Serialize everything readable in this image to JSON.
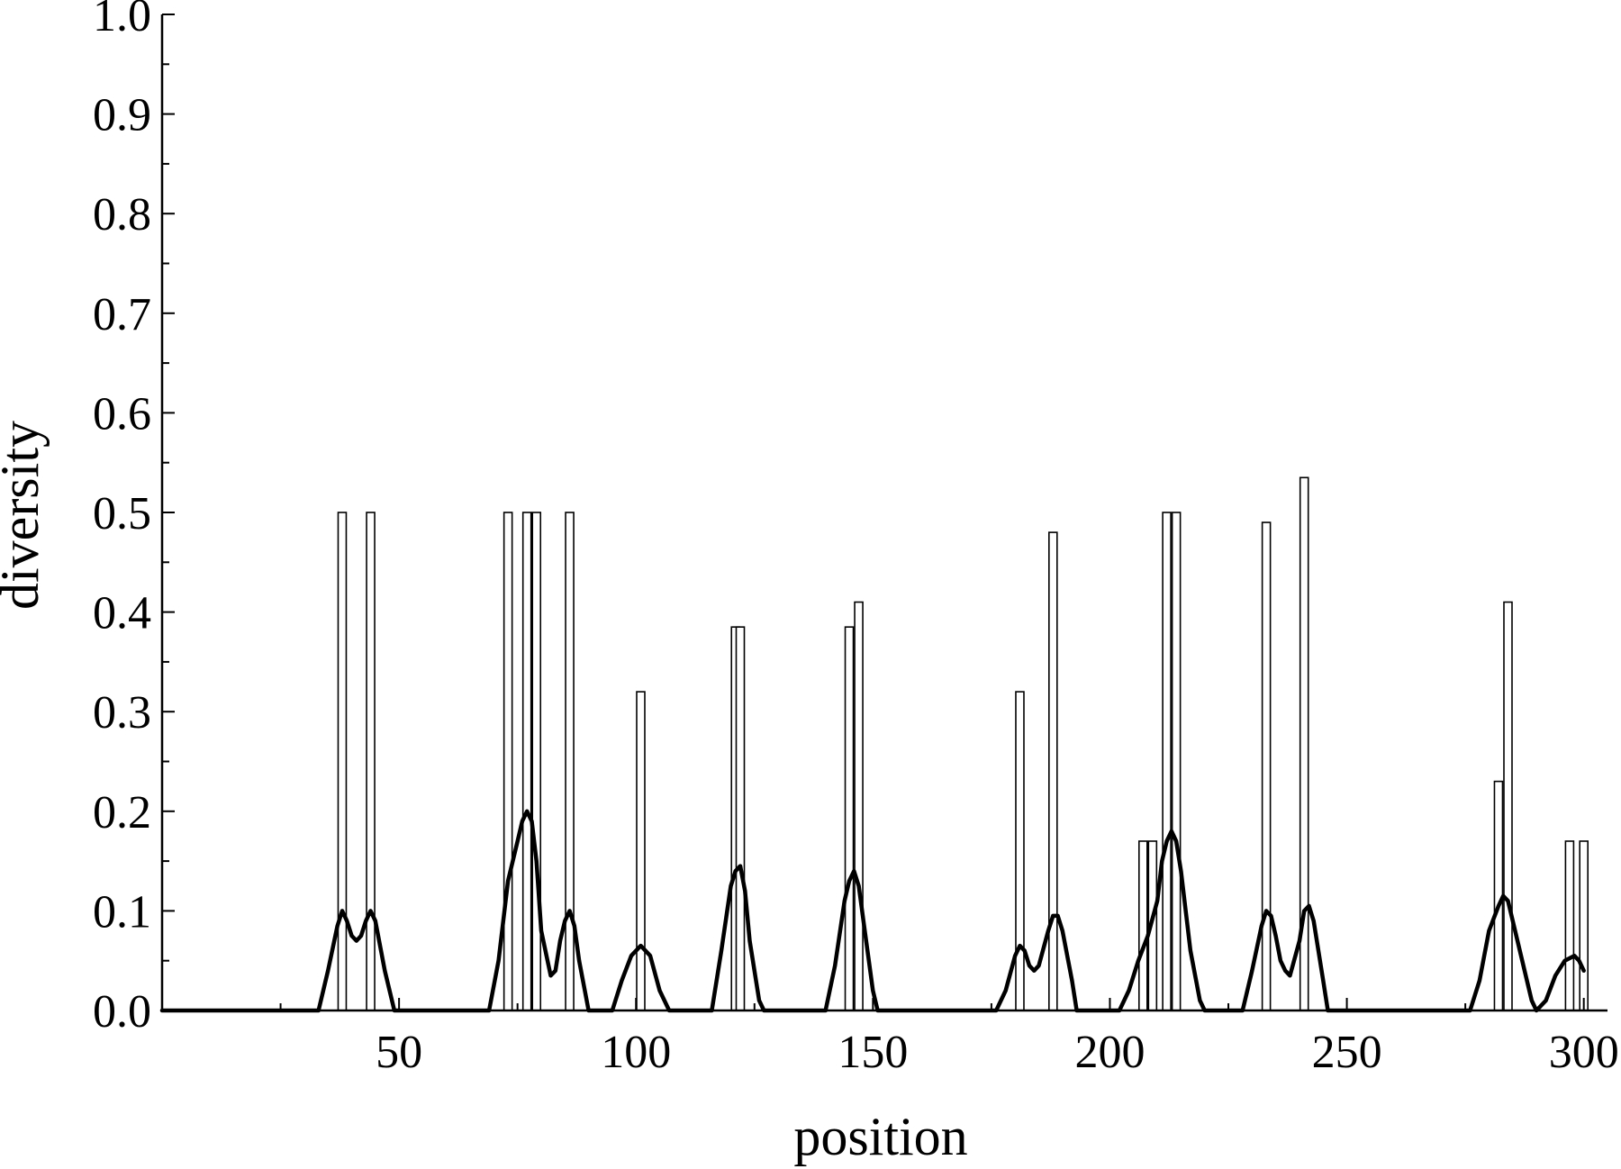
{
  "chart_data": {
    "type": "bar",
    "title": "",
    "xlabel": "position",
    "ylabel": "diversity",
    "xlim": [
      0,
      305
    ],
    "ylim": [
      0,
      1.0
    ],
    "x_ticks": [
      50,
      100,
      150,
      200,
      250,
      300
    ],
    "x_tick_labels": [
      "50",
      "100",
      "150",
      "200",
      "250",
      "300"
    ],
    "y_ticks": [
      0.0,
      0.1,
      0.2,
      0.3,
      0.4,
      0.5,
      0.6,
      0.7,
      0.8,
      0.9,
      1.0
    ],
    "y_tick_labels": [
      "0.0",
      "0.1",
      "0.2",
      "0.3",
      "0.4",
      "0.5",
      "0.6",
      "0.7",
      "0.8",
      "0.9",
      "1.0"
    ],
    "grid": false,
    "legend": "none",
    "series": [
      {
        "type": "bar",
        "x": [
          38,
          44,
          73,
          77,
          79,
          86,
          101,
          121,
          122,
          145,
          147,
          181,
          188,
          207,
          209,
          212,
          214,
          233,
          241,
          282,
          284,
          297,
          300
        ],
        "values": [
          0.5,
          0.5,
          0.5,
          0.5,
          0.5,
          0.5,
          0.32,
          0.385,
          0.385,
          0.385,
          0.41,
          0.32,
          0.48,
          0.17,
          0.17,
          0.5,
          0.5,
          0.49,
          0.535,
          0.23,
          0.41,
          0.17,
          0.17
        ]
      },
      {
        "type": "line",
        "x": [
          0,
          33,
          35,
          37,
          38,
          39,
          40,
          41,
          42,
          43,
          44,
          45,
          47,
          49,
          69,
          71,
          73,
          75,
          76,
          77,
          78,
          79,
          80,
          82,
          83,
          84,
          85,
          86,
          87,
          88,
          90,
          95,
          97,
          99,
          101,
          103,
          105,
          107,
          116,
          118,
          120,
          121,
          122,
          123,
          124,
          126,
          127,
          140,
          142,
          144,
          145,
          146,
          147,
          148,
          150,
          151,
          176,
          178,
          180,
          181,
          182,
          183,
          184,
          185,
          187,
          188,
          189,
          190,
          192,
          193,
          202,
          204,
          206,
          208,
          210,
          211,
          212,
          213,
          214,
          215,
          217,
          219,
          220,
          228,
          230,
          232,
          233,
          234,
          235,
          236,
          237,
          238,
          240,
          241,
          242,
          243,
          245,
          246,
          276,
          278,
          280,
          282,
          283,
          284,
          285,
          287,
          289,
          290,
          292,
          294,
          296,
          298,
          299,
          300
        ],
        "values": [
          0,
          0,
          0.04,
          0.085,
          0.1,
          0.09,
          0.075,
          0.07,
          0.075,
          0.09,
          0.1,
          0.09,
          0.04,
          0,
          0,
          0.05,
          0.13,
          0.17,
          0.19,
          0.2,
          0.19,
          0.15,
          0.08,
          0.035,
          0.04,
          0.07,
          0.09,
          0.1,
          0.085,
          0.05,
          0,
          0,
          0.03,
          0.055,
          0.065,
          0.055,
          0.02,
          0,
          0,
          0.06,
          0.125,
          0.14,
          0.145,
          0.12,
          0.07,
          0.01,
          0,
          0,
          0.045,
          0.11,
          0.13,
          0.14,
          0.125,
          0.09,
          0.02,
          0,
          0,
          0.02,
          0.055,
          0.065,
          0.06,
          0.045,
          0.04,
          0.045,
          0.08,
          0.095,
          0.095,
          0.08,
          0.03,
          0,
          0,
          0.02,
          0.05,
          0.075,
          0.11,
          0.15,
          0.17,
          0.18,
          0.17,
          0.14,
          0.06,
          0.01,
          0,
          0,
          0.04,
          0.085,
          0.1,
          0.095,
          0.075,
          0.05,
          0.04,
          0.035,
          0.07,
          0.1,
          0.105,
          0.09,
          0.03,
          0,
          0,
          0.03,
          0.08,
          0.105,
          0.115,
          0.11,
          0.09,
          0.05,
          0.01,
          0,
          0.01,
          0.035,
          0.05,
          0.055,
          0.05,
          0.04
        ]
      }
    ]
  }
}
